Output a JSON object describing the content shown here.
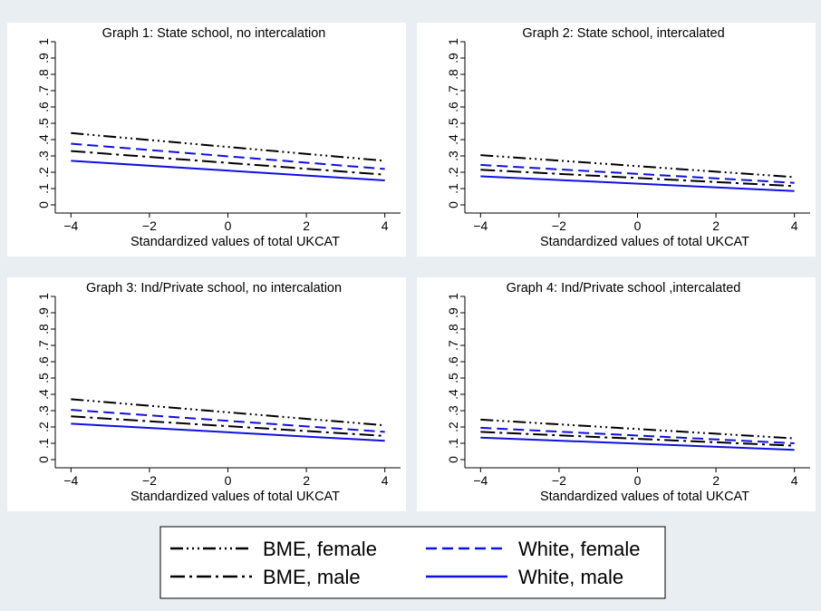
{
  "legend": {
    "entries": [
      {
        "label": "BME, female",
        "color": "#000000",
        "dash": "long-dash-dot-dot-dot"
      },
      {
        "label": "White, female",
        "color": "#1010e0",
        "dash": "dashed"
      },
      {
        "label": "BME, male",
        "color": "#000000",
        "dash": "long-dash-dot"
      },
      {
        "label": "White, male",
        "color": "#1010e0",
        "dash": "solid"
      }
    ]
  },
  "chart_data": [
    {
      "type": "line",
      "title": "Graph 1: State school, no intercalation",
      "xlabel": "Standardized values of total UKCAT",
      "ylabel": "",
      "xlim": [
        -4.4,
        4.4
      ],
      "ylim": [
        -0.05,
        1.0
      ],
      "xticks": [
        "-4",
        "-2",
        "0",
        "2",
        "4"
      ],
      "yticks": [
        "0",
        ".1",
        ".2",
        ".3",
        ".4",
        ".5",
        ".6",
        ".7",
        ".8",
        ".9",
        "1"
      ],
      "grid": false,
      "series": [
        {
          "name": "BME, female",
          "x": [
            -4,
            4
          ],
          "values": [
            0.44,
            0.27
          ]
        },
        {
          "name": "White, female",
          "x": [
            -4,
            4
          ],
          "values": [
            0.375,
            0.22
          ]
        },
        {
          "name": "BME, male",
          "x": [
            -4,
            4
          ],
          "values": [
            0.33,
            0.185
          ]
        },
        {
          "name": "White, male",
          "x": [
            -4,
            4
          ],
          "values": [
            0.27,
            0.15
          ]
        }
      ]
    },
    {
      "type": "line",
      "title": "Graph 2: State school, intercalated",
      "xlabel": "Standardized values of total UKCAT",
      "ylabel": "",
      "xlim": [
        -4.4,
        4.4
      ],
      "ylim": [
        -0.05,
        1.0
      ],
      "xticks": [
        "-4",
        "-2",
        "0",
        "2",
        "4"
      ],
      "yticks": [
        "0",
        ".1",
        ".2",
        ".3",
        ".4",
        ".5",
        ".6",
        ".7",
        ".8",
        ".9",
        "1"
      ],
      "grid": false,
      "series": [
        {
          "name": "BME, female",
          "x": [
            -4,
            4
          ],
          "values": [
            0.305,
            0.17
          ]
        },
        {
          "name": "White, female",
          "x": [
            -4,
            4
          ],
          "values": [
            0.245,
            0.135
          ]
        },
        {
          "name": "BME, male",
          "x": [
            -4,
            4
          ],
          "values": [
            0.215,
            0.115
          ]
        },
        {
          "name": "White, male",
          "x": [
            -4,
            4
          ],
          "values": [
            0.175,
            0.085
          ]
        }
      ]
    },
    {
      "type": "line",
      "title": "Graph 3: Ind/Private school, no intercalation",
      "xlabel": "Standardized values of total UKCAT",
      "ylabel": "",
      "xlim": [
        -4.4,
        4.4
      ],
      "ylim": [
        -0.05,
        1.0
      ],
      "xticks": [
        "-4",
        "-2",
        "0",
        "2",
        "4"
      ],
      "yticks": [
        "0",
        ".1",
        ".2",
        ".3",
        ".4",
        ".5",
        ".6",
        ".7",
        ".8",
        ".9",
        "1"
      ],
      "grid": false,
      "series": [
        {
          "name": "BME, female",
          "x": [
            -4,
            4
          ],
          "values": [
            0.37,
            0.21
          ]
        },
        {
          "name": "White, female",
          "x": [
            -4,
            4
          ],
          "values": [
            0.305,
            0.17
          ]
        },
        {
          "name": "BME, male",
          "x": [
            -4,
            4
          ],
          "values": [
            0.265,
            0.145
          ]
        },
        {
          "name": "White, male",
          "x": [
            -4,
            4
          ],
          "values": [
            0.22,
            0.115
          ]
        }
      ]
    },
    {
      "type": "line",
      "title": "Graph 4: Ind/Private school ,intercalated",
      "xlabel": "Standardized values of total UKCAT",
      "ylabel": "",
      "xlim": [
        -4.4,
        4.4
      ],
      "ylim": [
        -0.05,
        1.0
      ],
      "xticks": [
        "-4",
        "-2",
        "0",
        "2",
        "4"
      ],
      "yticks": [
        "0",
        ".1",
        ".2",
        ".3",
        ".4",
        ".5",
        ".6",
        ".7",
        ".8",
        ".9",
        "1"
      ],
      "grid": false,
      "series": [
        {
          "name": "BME, female",
          "x": [
            -4,
            4
          ],
          "values": [
            0.245,
            0.13
          ]
        },
        {
          "name": "White, female",
          "x": [
            -4,
            4
          ],
          "values": [
            0.195,
            0.1
          ]
        },
        {
          "name": "BME, male",
          "x": [
            -4,
            4
          ],
          "values": [
            0.17,
            0.085
          ]
        },
        {
          "name": "White, male",
          "x": [
            -4,
            4
          ],
          "values": [
            0.135,
            0.06
          ]
        }
      ]
    }
  ]
}
